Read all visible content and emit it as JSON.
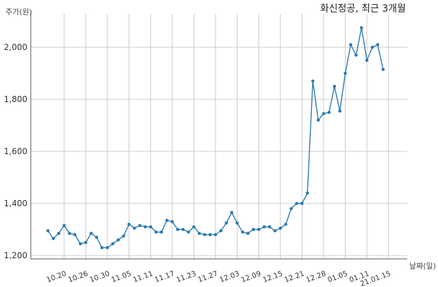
{
  "chart_data": {
    "type": "line",
    "title": "화신정공, 최근 3개월",
    "ylabel": "주가(원)",
    "xlabel": "날짜(일)",
    "ylim": [
      1200,
      2120
    ],
    "yticks": [
      1200,
      1400,
      1600,
      1800,
      2000
    ],
    "ytick_labels": [
      "1,200",
      "1,400",
      "1,600",
      "1,800",
      "2,000"
    ],
    "x_tick_labels": [
      "10.20",
      "10.26",
      "10.30",
      "11.05",
      "11.11",
      "11.17",
      "11.23",
      "11.27",
      "12.03",
      "12.09",
      "12.15",
      "12.21",
      "12.28",
      "01.05",
      "01.11",
      "21.01.15"
    ],
    "x_tick_positions": [
      3,
      7,
      11,
      15,
      19,
      23,
      27,
      31,
      35,
      39,
      43,
      47,
      51,
      55,
      59,
      63
    ],
    "grid": true,
    "legend": "none",
    "color": "#2a7ab0",
    "series": [
      {
        "values": [
          1295,
          1265,
          1285,
          1315,
          1285,
          1280,
          1245,
          1250,
          1285,
          1270,
          1230,
          1230,
          1245,
          1260,
          1275,
          1320,
          1305,
          1315,
          1310,
          1310,
          1290,
          1290,
          1335,
          1330,
          1300,
          1300,
          1290,
          1310,
          1285,
          1280,
          1280,
          1280,
          1295,
          1325,
          1365,
          1325,
          1290,
          1285,
          1300,
          1300,
          1310,
          1310,
          1295,
          1305,
          1320,
          1380,
          1400,
          1400,
          1440,
          1870,
          1720,
          1745,
          1750,
          1850,
          1755,
          1900,
          2010,
          1970,
          2075,
          1950,
          2000,
          2010,
          1915
        ]
      }
    ]
  }
}
